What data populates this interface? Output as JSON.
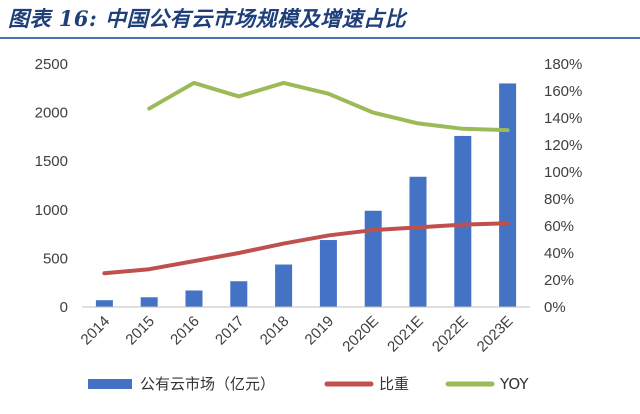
{
  "figure_title": "图表 16:  中国公有云市场规模及增速占比",
  "colors": {
    "bar": "#4472c4",
    "ratio_line": "#c0504d",
    "yoy_line": "#9bbb59",
    "title": "#1f3f7a"
  },
  "chart_data": {
    "type": "bar",
    "categories": [
      "2014",
      "2015",
      "2016",
      "2017",
      "2018",
      "2019",
      "2020E",
      "2021E",
      "2022E",
      "2023E"
    ],
    "series": [
      {
        "name": "公有云市场（亿元）",
        "type": "bar",
        "axis": "left",
        "values": [
          70,
          100,
          170,
          265,
          437,
          689,
          990,
          1340,
          1760,
          2300
        ]
      },
      {
        "name": "比重",
        "type": "line",
        "axis": "right",
        "values": [
          25,
          28,
          34,
          40,
          47,
          53,
          57,
          59,
          61,
          62
        ]
      },
      {
        "name": "YOY",
        "type": "line",
        "axis": "right",
        "values": [
          null,
          147,
          166,
          156,
          166,
          158,
          144,
          136,
          132,
          131
        ]
      }
    ],
    "y_left": {
      "min": 0,
      "max": 2500,
      "ticks": [
        "0",
        "500",
        "1000",
        "1500",
        "2000",
        "2500"
      ]
    },
    "y_right": {
      "min": 0,
      "max": 180,
      "ticks": [
        "0%",
        "20%",
        "40%",
        "60%",
        "80%",
        "100%",
        "120%",
        "140%",
        "160%",
        "180%"
      ]
    },
    "legend_position": "bottom",
    "grid": false
  }
}
